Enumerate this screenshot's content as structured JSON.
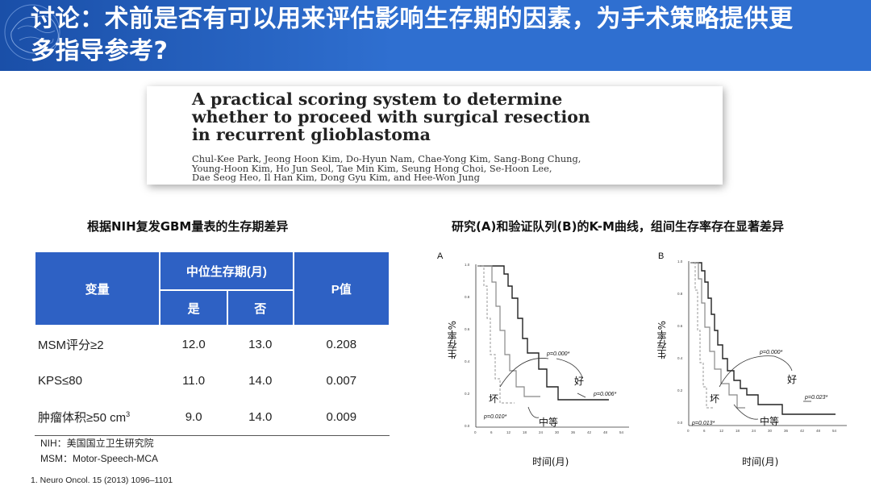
{
  "header": {
    "title_line1": "讨论：术前是否有可以用来评估影响生存期的因素，为手术策略提供更",
    "title_line2": "多指导参考?"
  },
  "paper": {
    "title_line1": "A practical scoring system to determine",
    "title_line2": "whether to proceed with surgical resection",
    "title_line3": "in recurrent glioblastoma",
    "authors_line1": "Chul-Kee Park, Jeong Hoon Kim, Do-Hyun Nam, Chae-Yong Kim, Sang-Bong Chung,",
    "authors_line2": "Young-Hoon Kim, Ho Jun Seol, Tae Min Kim, Seung Hong Choi, Se-Hoon Lee,",
    "authors_line3": "Dae Seog Heo, Il Han Kim, Dong Gyu Kim, and Hee-Won Jung"
  },
  "table_section": {
    "title": "根据NIH复发GBM量表的生存期差异",
    "headers": {
      "variable": "变量",
      "median": "中位生存期(月)",
      "yes": "是",
      "no": "否",
      "p": "P值"
    },
    "rows": [
      {
        "var": "MSM评分≥2",
        "yes": "12.0",
        "no": "13.0",
        "p": "0.208"
      },
      {
        "var": "KPS≤80",
        "yes": "11.0",
        "no": "14.0",
        "p": "0.007"
      },
      {
        "var": "肿瘤体积≥50 cm",
        "sup": "3",
        "yes": "9.0",
        "no": "14.0",
        "p": "0.009"
      }
    ],
    "note1": "NIH：美国国立卫生研究院",
    "note2": "MSM：Motor-Speech-MCA"
  },
  "reference": "1.   Neuro Oncol. 15 (2013) 1096–1101",
  "km_section": {
    "title": "研究(A)和验证队列(B)的K-M曲线，组间生存率存在显著差异",
    "panels": [
      {
        "letter": "A",
        "ylabel": "生存率%",
        "xlabel": "时间(月)",
        "good": "好",
        "bad": "坏",
        "mid": "中等",
        "p1": "p=0.000*",
        "p2": "p=0.006*",
        "p3": "p=0.010*",
        "yticks": [
          "1.0",
          "0.8",
          "0.6",
          "0.4",
          "0.2",
          "0.0"
        ],
        "xticks": [
          "0",
          "6",
          "12",
          "18",
          "24",
          "30",
          "36",
          "42",
          "48",
          "54"
        ]
      },
      {
        "letter": "B",
        "ylabel": "生存率%",
        "xlabel": "时间(月)",
        "good": "好",
        "bad": "坏",
        "mid": "中等",
        "p1": "p=0.000*",
        "p2": "p=0.023*",
        "p3": "p=0.013*",
        "yticks": [
          "1.0",
          "0.8",
          "0.6",
          "0.4",
          "0.2",
          "0.0"
        ],
        "xticks": [
          "0",
          "6",
          "12",
          "18",
          "24",
          "30",
          "36",
          "42",
          "48",
          "54"
        ]
      }
    ]
  },
  "colors": {
    "header_blue": "#2f6fd0",
    "table_blue": "#2e61c4"
  }
}
